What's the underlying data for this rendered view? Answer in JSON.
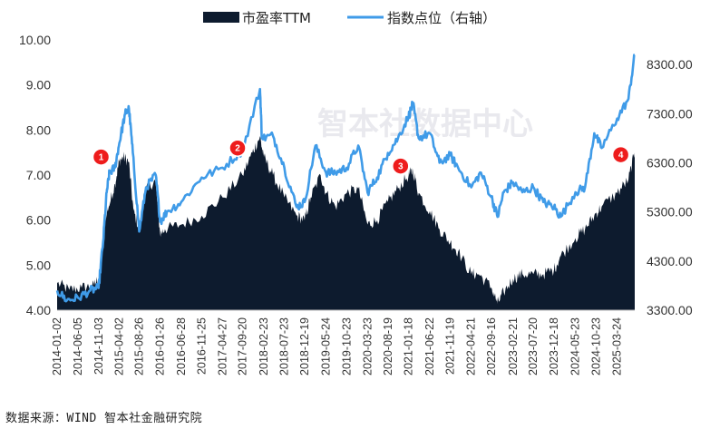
{
  "chart_data": {
    "type": "line",
    "title": "",
    "watermark": "智本社数据中心",
    "source": "数据来源：WIND 智本社金融研究院",
    "legend_position": "top",
    "series": [
      {
        "name": "市盈率TTM",
        "kind": "area",
        "axis": "left",
        "color": "#0d1b2e"
      },
      {
        "name": "指数点位（右轴）",
        "kind": "line",
        "axis": "right",
        "color": "#3f9be8"
      }
    ],
    "y_left": {
      "ylim": [
        4.0,
        10.0
      ],
      "ticks": [
        "4.00",
        "5.00",
        "6.00",
        "7.00",
        "8.00",
        "9.00",
        "10.00"
      ]
    },
    "y_right": {
      "ylim": [
        3300,
        8800
      ],
      "ticks": [
        "3300.00",
        "4300.00",
        "5300.00",
        "6300.00",
        "7300.00",
        "8300.00"
      ]
    },
    "x_ticks": [
      "2014-01-02",
      "2014-06-05",
      "2014-11-03",
      "2015-04-02",
      "2015-08-26",
      "2016-01-26",
      "2016-06-28",
      "2016-11-25",
      "2017-04-27",
      "2017-09-20",
      "2018-02-23",
      "2018-07-23",
      "2018-12-19",
      "2019-05-24",
      "2019-10-23",
      "2020-03-23",
      "2020-08-19",
      "2021-01-18",
      "2021-06-22",
      "2021-11-19",
      "2022-04-21",
      "2022-09-16",
      "2023-02-21",
      "2023-07-20",
      "2023-12-18",
      "2024-05-23",
      "2024-10-23",
      "2025-03-24"
    ],
    "x_range": [
      "2014-01-02",
      "2025-07-31"
    ],
    "pe_points": [
      [
        "2014-01-02",
        4.6
      ],
      [
        "2014-04-01",
        4.45
      ],
      [
        "2014-07-01",
        4.5
      ],
      [
        "2014-10-01",
        4.55
      ],
      [
        "2014-11-15",
        4.8
      ],
      [
        "2014-12-15",
        6.0
      ],
      [
        "2015-01-15",
        6.3
      ],
      [
        "2015-03-01",
        6.8
      ],
      [
        "2015-04-01",
        7.3
      ],
      [
        "2015-05-01",
        7.4
      ],
      [
        "2015-06-10",
        7.3
      ],
      [
        "2015-07-15",
        6.2
      ],
      [
        "2015-08-26",
        5.8
      ],
      [
        "2015-10-01",
        6.6
      ],
      [
        "2015-12-20",
        6.9
      ],
      [
        "2016-01-26",
        5.7
      ],
      [
        "2016-03-01",
        5.8
      ],
      [
        "2016-06-28",
        5.9
      ],
      [
        "2016-11-25",
        6.1
      ],
      [
        "2017-04-27",
        6.5
      ],
      [
        "2017-09-20",
        7.0
      ],
      [
        "2017-12-01",
        7.5
      ],
      [
        "2018-01-25",
        7.85
      ],
      [
        "2018-02-23",
        7.4
      ],
      [
        "2018-05-01",
        7.0
      ],
      [
        "2018-07-23",
        6.5
      ],
      [
        "2018-10-20",
        6.1
      ],
      [
        "2018-12-19",
        6.0
      ],
      [
        "2019-02-01",
        6.5
      ],
      [
        "2019-04-15",
        7.0
      ],
      [
        "2019-05-24",
        6.6
      ],
      [
        "2019-08-01",
        6.3
      ],
      [
        "2019-10-23",
        6.6
      ],
      [
        "2020-01-15",
        6.7
      ],
      [
        "2020-03-23",
        5.9
      ],
      [
        "2020-06-01",
        6.0
      ],
      [
        "2020-08-19",
        6.4
      ],
      [
        "2020-11-01",
        6.7
      ],
      [
        "2021-01-18",
        7.0
      ],
      [
        "2021-02-18",
        7.1
      ],
      [
        "2021-04-01",
        6.6
      ],
      [
        "2021-06-22",
        6.2
      ],
      [
        "2021-09-01",
        5.8
      ],
      [
        "2021-11-19",
        5.5
      ],
      [
        "2022-01-15",
        5.3
      ],
      [
        "2022-04-21",
        4.8
      ],
      [
        "2022-06-15",
        4.8
      ],
      [
        "2022-09-16",
        4.5
      ],
      [
        "2022-10-31",
        4.15
      ],
      [
        "2022-12-15",
        4.4
      ],
      [
        "2023-02-21",
        4.7
      ],
      [
        "2023-05-01",
        4.8
      ],
      [
        "2023-07-20",
        4.8
      ],
      [
        "2023-10-01",
        4.8
      ],
      [
        "2023-12-18",
        4.9
      ],
      [
        "2024-02-05",
        5.2
      ],
      [
        "2024-05-23",
        5.6
      ],
      [
        "2024-08-01",
        5.8
      ],
      [
        "2024-10-08",
        6.1
      ],
      [
        "2024-12-01",
        6.3
      ],
      [
        "2025-03-24",
        6.6
      ],
      [
        "2025-06-15",
        6.9
      ],
      [
        "2025-07-31",
        7.5
      ]
    ],
    "index_points": [
      [
        "2014-01-02",
        3700
      ],
      [
        "2014-03-15",
        3500
      ],
      [
        "2014-06-05",
        3550
      ],
      [
        "2014-09-01",
        3700
      ],
      [
        "2014-11-01",
        3750
      ],
      [
        "2014-12-05",
        4700
      ],
      [
        "2014-12-31",
        5700
      ],
      [
        "2015-01-20",
        6100
      ],
      [
        "2015-03-01",
        6200
      ],
      [
        "2015-04-02",
        6700
      ],
      [
        "2015-05-15",
        7300
      ],
      [
        "2015-06-12",
        7400
      ],
      [
        "2015-07-10",
        6500
      ],
      [
        "2015-08-26",
        4900
      ],
      [
        "2015-10-15",
        5800
      ],
      [
        "2015-12-25",
        6050
      ],
      [
        "2016-01-26",
        5100
      ],
      [
        "2016-03-15",
        5300
      ],
      [
        "2016-06-28",
        5500
      ],
      [
        "2016-11-25",
        6000
      ],
      [
        "2017-04-27",
        6200
      ],
      [
        "2017-09-20",
        6550
      ],
      [
        "2018-01-26",
        7800
      ],
      [
        "2018-02-09",
        6800
      ],
      [
        "2018-05-01",
        6850
      ],
      [
        "2018-07-23",
        6200
      ],
      [
        "2018-10-20",
        5400
      ],
      [
        "2018-12-19",
        5500
      ],
      [
        "2019-03-08",
        6650
      ],
      [
        "2019-05-24",
        6100
      ],
      [
        "2019-08-01",
        6100
      ],
      [
        "2019-10-23",
        6200
      ],
      [
        "2020-01-15",
        6650
      ],
      [
        "2020-03-23",
        5700
      ],
      [
        "2020-06-01",
        6000
      ],
      [
        "2020-08-19",
        6500
      ],
      [
        "2020-11-01",
        6800
      ],
      [
        "2021-01-18",
        7250
      ],
      [
        "2021-02-18",
        7500
      ],
      [
        "2021-04-01",
        6800
      ],
      [
        "2021-06-22",
        6900
      ],
      [
        "2021-09-01",
        6300
      ],
      [
        "2021-11-19",
        6450
      ],
      [
        "2022-01-15",
        6200
      ],
      [
        "2022-04-21",
        5800
      ],
      [
        "2022-07-01",
        6100
      ],
      [
        "2022-09-16",
        5600
      ],
      [
        "2022-10-31",
        5200
      ],
      [
        "2022-12-15",
        5700
      ],
      [
        "2023-02-21",
        5900
      ],
      [
        "2023-05-01",
        5700
      ],
      [
        "2023-07-20",
        5800
      ],
      [
        "2023-10-01",
        5500
      ],
      [
        "2023-12-18",
        5400
      ],
      [
        "2024-02-05",
        5200
      ],
      [
        "2024-05-23",
        5700
      ],
      [
        "2024-08-01",
        5800
      ],
      [
        "2024-10-08",
        6900
      ],
      [
        "2024-12-01",
        6600
      ],
      [
        "2025-03-24",
        7200
      ],
      [
        "2025-06-15",
        7600
      ],
      [
        "2025-07-31",
        8500
      ]
    ],
    "markers": [
      {
        "label": "1",
        "date": "2014-11-20",
        "pe": 7.4
      },
      {
        "label": "2",
        "date": "2017-08-15",
        "pe": 7.6
      },
      {
        "label": "3",
        "date": "2020-11-20",
        "pe": 7.2
      },
      {
        "label": "4",
        "date": "2025-04-20",
        "pe": 7.45
      }
    ]
  }
}
